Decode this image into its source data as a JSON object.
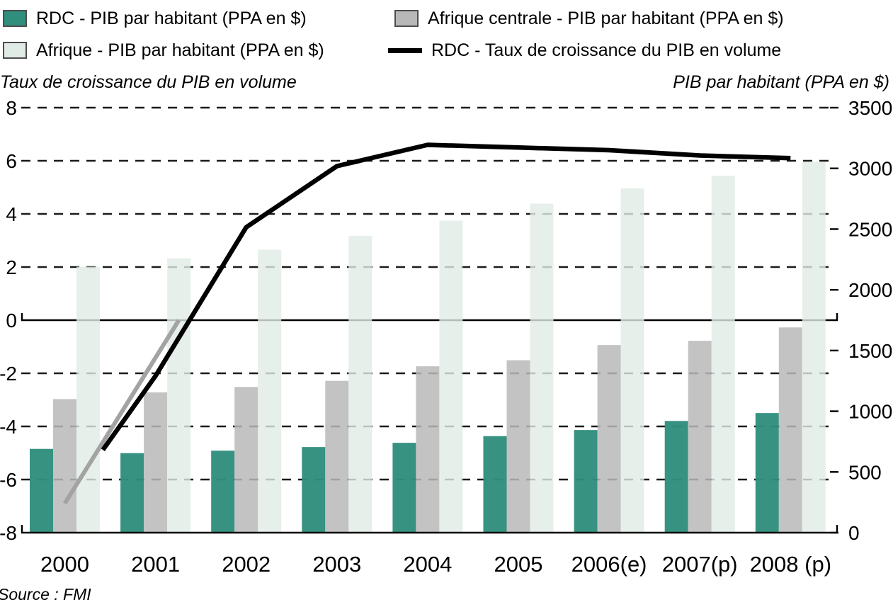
{
  "legend": {
    "items": [
      {
        "label": "RDC - PIB par habitant (PPA en $)",
        "swatch": "box",
        "color": "#2f8e7c"
      },
      {
        "label": "Afrique centrale - PIB par habitant (PPA en $)",
        "swatch": "box",
        "color": "#b8b8b8"
      },
      {
        "label": "Afrique - PIB par habitant (PPA en $)",
        "swatch": "box",
        "color": "#e1ebe6"
      },
      {
        "label": "RDC - Taux de croissance du PIB en volume",
        "swatch": "line",
        "color": "#000000"
      }
    ]
  },
  "axis_titles": {
    "left": "Taux de croissance du PIB en volume",
    "right": "PIB par habitant (PPA en $)"
  },
  "source": "Source : FMI",
  "chart_data": {
    "type": "bar+line combo",
    "categories": [
      "2000",
      "2001",
      "2002",
      "2003",
      "2004",
      "2005",
      "2006(e)",
      "2007(p)",
      "2008 (p)"
    ],
    "bar_series": [
      {
        "name": "RDC - PIB par habitant (PPA en $)",
        "key": "rdc-pib",
        "axis": "right",
        "color": "#2f8e7c",
        "values": [
          690,
          655,
          675,
          705,
          740,
          795,
          845,
          920,
          985
        ]
      },
      {
        "name": "Afrique centrale - PIB par habitant (PPA en $)",
        "key": "afrique-centrale-pib",
        "axis": "right",
        "color": "#b8b8b8",
        "values": [
          1100,
          1155,
          1200,
          1250,
          1370,
          1420,
          1545,
          1580,
          1690
        ]
      },
      {
        "name": "Afrique - PIB par habitant (PPA en $)",
        "key": "afrique-pib",
        "axis": "right",
        "color": "#e1ebe6",
        "values": [
          2190,
          2260,
          2330,
          2445,
          2570,
          2710,
          2835,
          2940,
          3055
        ]
      }
    ],
    "line_series": [
      {
        "name": "RDC - Taux de croissance du PIB en volume",
        "key": "rdc-croissance",
        "axis": "left",
        "color": "#000000",
        "values": [
          -6.9,
          -2.1,
          3.5,
          5.8,
          6.6,
          6.5,
          6.4,
          6.2,
          6.1
        ]
      }
    ],
    "left_axis": {
      "title": "Taux de croissance du PIB en volume",
      "min": -8,
      "max": 8,
      "step": 2,
      "ticks": [
        8,
        6,
        4,
        2,
        0,
        -2,
        -4,
        -6,
        -8
      ]
    },
    "right_axis": {
      "title": "PIB par habitant (PPA en $)",
      "min": 0,
      "max": 3500,
      "step": 500,
      "ticks": [
        3500,
        3000,
        2500,
        2000,
        1500,
        1000,
        500,
        0
      ]
    },
    "grid": "horizontal dashed",
    "legend_position": "top"
  }
}
